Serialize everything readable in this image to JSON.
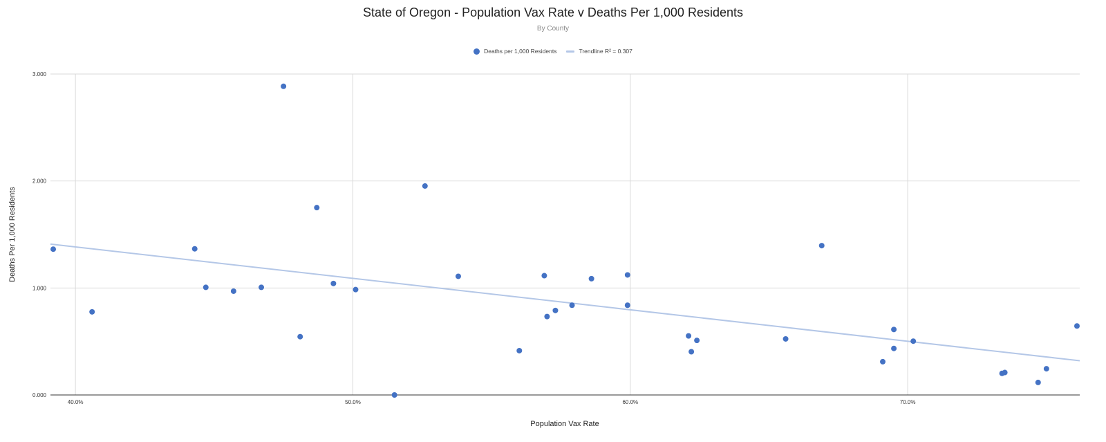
{
  "chart_data": {
    "type": "scatter",
    "title": "State of Oregon - Population Vax Rate v Deaths Per 1,000 Residents",
    "subtitle": "By County",
    "xlabel": "Population Vax Rate",
    "ylabel": "Deaths Per 1,000 Residents",
    "xlim": [
      0.391,
      0.762
    ],
    "ylim": [
      0,
      3
    ],
    "x_ticks": [
      0.4,
      0.5,
      0.6,
      0.7
    ],
    "x_tick_labels": [
      "40.0%",
      "50.0%",
      "60.0%",
      "70.0%"
    ],
    "y_ticks": [
      0,
      1,
      2,
      3
    ],
    "y_tick_labels": [
      "0.000",
      "1.000",
      "2.000",
      "3.000"
    ],
    "grid": true,
    "legend_position": "top",
    "colors": {
      "points": "#4472c4",
      "trendline": "#b4c7e7",
      "grid": "#d9d9d9"
    },
    "series": [
      {
        "name": "Deaths per 1,000 Residents",
        "x": [
          0.392,
          0.406,
          0.443,
          0.447,
          0.457,
          0.467,
          0.475,
          0.481,
          0.487,
          0.493,
          0.501,
          0.515,
          0.526,
          0.538,
          0.56,
          0.569,
          0.57,
          0.573,
          0.579,
          0.586,
          0.599,
          0.599,
          0.621,
          0.622,
          0.624,
          0.656,
          0.669,
          0.691,
          0.695,
          0.695,
          0.702,
          0.734,
          0.735,
          0.747,
          0.75,
          0.761
        ],
        "y": [
          1.363,
          0.777,
          1.366,
          1.006,
          0.97,
          1.006,
          2.885,
          0.545,
          1.751,
          1.042,
          0.985,
          0.0,
          1.953,
          1.109,
          0.414,
          1.115,
          0.733,
          0.79,
          0.839,
          1.087,
          1.122,
          0.839,
          0.552,
          0.404,
          0.51,
          0.524,
          1.396,
          0.311,
          0.612,
          0.435,
          0.503,
          0.202,
          0.21,
          0.117,
          0.245,
          0.645
        ]
      }
    ],
    "trendline": {
      "name": "Trendline R² = 0.307",
      "x": [
        0.391,
        0.762
      ],
      "y": [
        1.41,
        0.32
      ]
    }
  }
}
